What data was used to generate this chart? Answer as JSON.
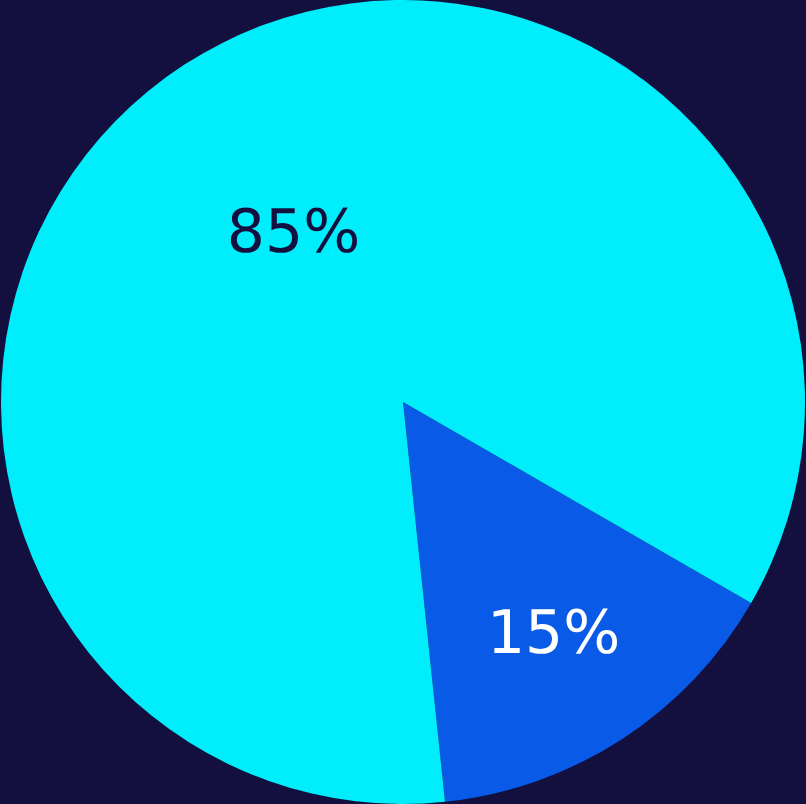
{
  "chart_data": {
    "type": "pie",
    "categories": [
      null,
      null
    ],
    "values": [
      15,
      85
    ],
    "colors": [
      "#0a5ae8",
      "#00eefb"
    ],
    "value_labels": [
      "15%",
      "85%"
    ],
    "legend": false
  }
}
